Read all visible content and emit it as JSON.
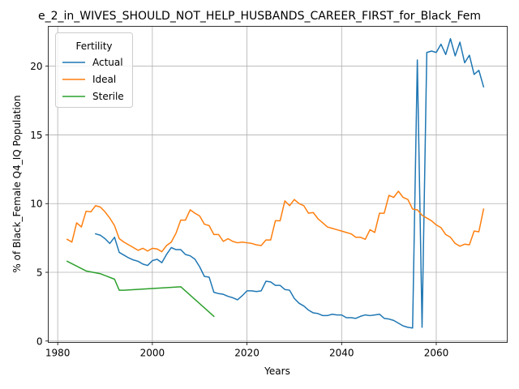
{
  "chart_data": {
    "type": "line",
    "title": "e_2_in_WIVES_SHOULD_NOT_HELP_HUSBANDS_CAREER_FIRST_for_Black_Fem",
    "xlabel": "Years",
    "ylabel": "% of Black_Female Q4_IQ Population",
    "xlim": [
      1978,
      2075
    ],
    "ylim": [
      -0.1,
      22.9
    ],
    "xticks": [
      1980,
      2000,
      2020,
      2040,
      2060
    ],
    "yticks": [
      0,
      5,
      10,
      15,
      20
    ],
    "grid": true,
    "legend": {
      "title": "Fertility",
      "placement": "top-left"
    },
    "series": [
      {
        "name": "Actual",
        "color": "#1f77b4",
        "points": [
          [
            1988,
            7.8
          ],
          [
            1989,
            7.7
          ],
          [
            1990,
            7.45
          ],
          [
            1991,
            7.1
          ],
          [
            1992,
            7.55
          ],
          [
            1993,
            6.45
          ],
          [
            1994,
            6.25
          ],
          [
            1995,
            6.05
          ],
          [
            1996,
            5.9
          ],
          [
            1997,
            5.8
          ],
          [
            1998,
            5.6
          ],
          [
            1999,
            5.5
          ],
          [
            2000,
            5.85
          ],
          [
            2001,
            5.95
          ],
          [
            2002,
            5.7
          ],
          [
            2003,
            6.3
          ],
          [
            2004,
            6.8
          ],
          [
            2005,
            6.65
          ],
          [
            2006,
            6.65
          ],
          [
            2007,
            6.3
          ],
          [
            2008,
            6.2
          ],
          [
            2009,
            5.95
          ],
          [
            2010,
            5.4
          ],
          [
            2011,
            4.7
          ],
          [
            2012,
            4.65
          ],
          [
            2013,
            3.55
          ],
          [
            2014,
            3.45
          ],
          [
            2015,
            3.4
          ],
          [
            2016,
            3.25
          ],
          [
            2017,
            3.15
          ],
          [
            2018,
            3.0
          ],
          [
            2019,
            3.3
          ],
          [
            2020,
            3.65
          ],
          [
            2021,
            3.65
          ],
          [
            2022,
            3.6
          ],
          [
            2023,
            3.65
          ],
          [
            2024,
            4.35
          ],
          [
            2025,
            4.3
          ],
          [
            2026,
            4.05
          ],
          [
            2027,
            4.05
          ],
          [
            2028,
            3.75
          ],
          [
            2029,
            3.7
          ],
          [
            2030,
            3.1
          ],
          [
            2031,
            2.75
          ],
          [
            2032,
            2.55
          ],
          [
            2033,
            2.25
          ],
          [
            2034,
            2.05
          ],
          [
            2035,
            2.0
          ],
          [
            2036,
            1.85
          ],
          [
            2037,
            1.85
          ],
          [
            2038,
            1.95
          ],
          [
            2039,
            1.9
          ],
          [
            2040,
            1.9
          ],
          [
            2041,
            1.7
          ],
          [
            2042,
            1.7
          ],
          [
            2043,
            1.65
          ],
          [
            2044,
            1.8
          ],
          [
            2045,
            1.9
          ],
          [
            2046,
            1.85
          ],
          [
            2047,
            1.9
          ],
          [
            2048,
            1.95
          ],
          [
            2049,
            1.65
          ],
          [
            2050,
            1.6
          ],
          [
            2051,
            1.5
          ],
          [
            2052,
            1.3
          ],
          [
            2053,
            1.1
          ],
          [
            2054,
            1.0
          ],
          [
            2055,
            0.95
          ],
          [
            2056,
            20.45
          ],
          [
            2057,
            1.0
          ],
          [
            2058,
            21.0
          ],
          [
            2059,
            21.1
          ],
          [
            2060,
            21.0
          ],
          [
            2061,
            21.6
          ],
          [
            2062,
            20.85
          ],
          [
            2063,
            22.0
          ],
          [
            2064,
            20.75
          ],
          [
            2065,
            21.75
          ],
          [
            2066,
            20.25
          ],
          [
            2067,
            20.8
          ],
          [
            2068,
            19.4
          ],
          [
            2069,
            19.7
          ],
          [
            2070,
            18.5
          ]
        ]
      },
      {
        "name": "Ideal",
        "color": "#ff7f0e",
        "points": [
          [
            1982,
            7.4
          ],
          [
            1983,
            7.2
          ],
          [
            1984,
            8.6
          ],
          [
            1985,
            8.3
          ],
          [
            1986,
            9.45
          ],
          [
            1987,
            9.4
          ],
          [
            1988,
            9.85
          ],
          [
            1989,
            9.75
          ],
          [
            1990,
            9.4
          ],
          [
            1991,
            8.95
          ],
          [
            1992,
            8.4
          ],
          [
            1993,
            7.45
          ],
          [
            1994,
            7.2
          ],
          [
            1995,
            7.0
          ],
          [
            1996,
            6.8
          ],
          [
            1997,
            6.6
          ],
          [
            1998,
            6.75
          ],
          [
            1999,
            6.55
          ],
          [
            2000,
            6.75
          ],
          [
            2001,
            6.7
          ],
          [
            2002,
            6.5
          ],
          [
            2003,
            6.95
          ],
          [
            2004,
            7.2
          ],
          [
            2005,
            7.85
          ],
          [
            2006,
            8.8
          ],
          [
            2007,
            8.8
          ],
          [
            2008,
            9.55
          ],
          [
            2009,
            9.3
          ],
          [
            2010,
            9.1
          ],
          [
            2011,
            8.5
          ],
          [
            2012,
            8.4
          ],
          [
            2013,
            7.75
          ],
          [
            2014,
            7.75
          ],
          [
            2015,
            7.25
          ],
          [
            2016,
            7.45
          ],
          [
            2017,
            7.25
          ],
          [
            2018,
            7.15
          ],
          [
            2019,
            7.2
          ],
          [
            2020,
            7.15
          ],
          [
            2021,
            7.1
          ],
          [
            2022,
            7.0
          ],
          [
            2023,
            6.95
          ],
          [
            2024,
            7.35
          ],
          [
            2025,
            7.35
          ],
          [
            2026,
            8.75
          ],
          [
            2027,
            8.75
          ],
          [
            2028,
            10.2
          ],
          [
            2029,
            9.85
          ],
          [
            2030,
            10.3
          ],
          [
            2031,
            10.0
          ],
          [
            2032,
            9.85
          ],
          [
            2033,
            9.3
          ],
          [
            2034,
            9.35
          ],
          [
            2035,
            8.9
          ],
          [
            2036,
            8.6
          ],
          [
            2037,
            8.3
          ],
          [
            2038,
            8.2
          ],
          [
            2039,
            8.1
          ],
          [
            2040,
            8.0
          ],
          [
            2041,
            7.9
          ],
          [
            2042,
            7.8
          ],
          [
            2043,
            7.55
          ],
          [
            2044,
            7.55
          ],
          [
            2045,
            7.4
          ],
          [
            2046,
            8.1
          ],
          [
            2047,
            7.9
          ],
          [
            2048,
            9.3
          ],
          [
            2049,
            9.3
          ],
          [
            2050,
            10.6
          ],
          [
            2051,
            10.45
          ],
          [
            2052,
            10.9
          ],
          [
            2053,
            10.45
          ],
          [
            2054,
            10.3
          ],
          [
            2055,
            9.6
          ],
          [
            2056,
            9.55
          ],
          [
            2057,
            9.15
          ],
          [
            2058,
            8.95
          ],
          [
            2059,
            8.75
          ],
          [
            2060,
            8.45
          ],
          [
            2061,
            8.25
          ],
          [
            2062,
            7.75
          ],
          [
            2063,
            7.55
          ],
          [
            2064,
            7.1
          ],
          [
            2065,
            6.9
          ],
          [
            2066,
            7.05
          ],
          [
            2067,
            7.0
          ],
          [
            2068,
            8.0
          ],
          [
            2069,
            7.95
          ],
          [
            2070,
            9.6
          ]
        ]
      },
      {
        "name": "Sterile",
        "color": "#2ca02c",
        "points": [
          [
            1982,
            5.8
          ],
          [
            1986,
            5.1
          ],
          [
            1989,
            4.9
          ],
          [
            1992,
            4.5
          ],
          [
            1993,
            3.7
          ],
          [
            1994,
            3.7
          ],
          [
            2006,
            3.95
          ],
          [
            2013,
            1.8
          ]
        ]
      }
    ]
  }
}
